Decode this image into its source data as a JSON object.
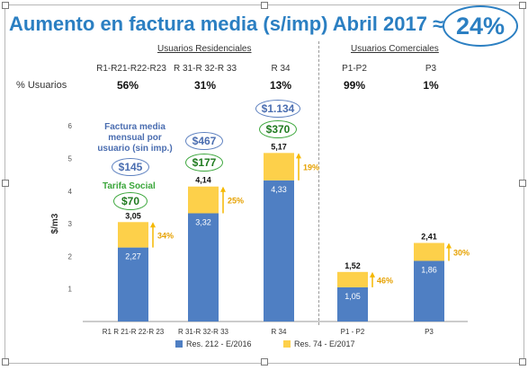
{
  "title": "Aumento en factura media (s/imp) Abril 2017 ≈",
  "headline_pct": "24%",
  "groups": {
    "residential": "Usuarios Residenciales",
    "commercial": "Usuarios Comerciales"
  },
  "header_codes": [
    "R1-R21-R22-R23",
    "R 31-R 32-R 33",
    "R 34",
    "P1-P2",
    "P3"
  ],
  "row_label": "% Usuarios",
  "user_pcts": [
    "56%",
    "31%",
    "13%",
    "99%",
    "1%"
  ],
  "note_blue": "Factura media mensual por usuario (sin imp.)",
  "note_green": "Tarifa Social",
  "ovals": {
    "r1_blue": "$145",
    "r1_green": "$70",
    "r3_blue": "$467",
    "r3_green": "$177",
    "r34_blue": "$1.134",
    "r34_green": "$370"
  },
  "colors": {
    "blue": "#4f7fc3",
    "yellow": "#fdd04a",
    "arrow": "#f5b800",
    "title": "#2b7fc2"
  },
  "chart_data": {
    "type": "bar",
    "stacked": true,
    "ylabel": "$/m3",
    "ylim": [
      0,
      6
    ],
    "yticks": [
      1,
      2,
      3,
      4,
      5,
      6
    ],
    "categories": [
      "R1 R 21-R 22-R 23",
      "R 31-R 32-R 33",
      "R 34",
      "P1 - P2",
      "P3"
    ],
    "series": [
      {
        "name": "Res. 212 - E/2016",
        "values": [
          2.27,
          3.32,
          4.33,
          1.05,
          1.86
        ],
        "labels": [
          "2,27",
          "3,32",
          "4,33",
          "1,05",
          "1,86"
        ]
      },
      {
        "name": "Res. 74 - E/2017",
        "totals": [
          3.05,
          4.14,
          5.17,
          1.52,
          2.41
        ],
        "labels": [
          "3,05",
          "4,14",
          "5,17",
          "1,52",
          "2,41"
        ]
      }
    ],
    "increase_labels": [
      "34%",
      "25%",
      "19%",
      "46%",
      "30%"
    ],
    "legend_position": "bottom",
    "grid": false
  }
}
